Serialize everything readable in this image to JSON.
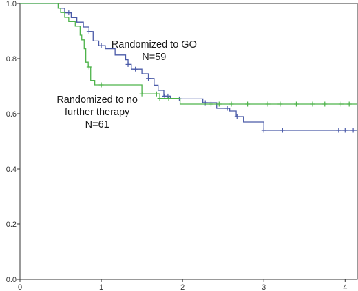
{
  "chart_data": {
    "type": "line",
    "title": "",
    "xlabel": "",
    "ylabel": "",
    "xlim": [
      0,
      4.15
    ],
    "ylim": [
      0,
      1.0
    ],
    "x_ticks": [
      0,
      1,
      2,
      3,
      4
    ],
    "y_ticks": [
      0.0,
      0.2,
      0.4,
      0.6,
      0.8,
      1.0
    ],
    "x_tick_labels": [
      "0",
      "1",
      "2",
      "3",
      "4"
    ],
    "y_tick_labels": [
      "0.0",
      "0.2",
      "0.4",
      "0.6",
      "0.8",
      "1.0"
    ],
    "grid": false,
    "legend": "none",
    "series": [
      {
        "color": "#4a5aa8",
        "step_points": [
          [
            0,
            1.0
          ],
          [
            0.47,
            1.0
          ],
          [
            0.47,
            0.983
          ],
          [
            0.55,
            0.983
          ],
          [
            0.55,
            0.966
          ],
          [
            0.63,
            0.966
          ],
          [
            0.63,
            0.949
          ],
          [
            0.7,
            0.949
          ],
          [
            0.7,
            0.932
          ],
          [
            0.78,
            0.932
          ],
          [
            0.78,
            0.915
          ],
          [
            0.85,
            0.915
          ],
          [
            0.85,
            0.898
          ],
          [
            0.9,
            0.898
          ],
          [
            0.9,
            0.864
          ],
          [
            0.97,
            0.864
          ],
          [
            0.97,
            0.847
          ],
          [
            1.05,
            0.847
          ],
          [
            1.05,
            0.836
          ],
          [
            1.17,
            0.836
          ],
          [
            1.17,
            0.813
          ],
          [
            1.3,
            0.813
          ],
          [
            1.3,
            0.796
          ],
          [
            1.33,
            0.796
          ],
          [
            1.33,
            0.779
          ],
          [
            1.37,
            0.779
          ],
          [
            1.37,
            0.762
          ],
          [
            1.5,
            0.762
          ],
          [
            1.5,
            0.745
          ],
          [
            1.58,
            0.745
          ],
          [
            1.58,
            0.728
          ],
          [
            1.65,
            0.728
          ],
          [
            1.65,
            0.704
          ],
          [
            1.7,
            0.704
          ],
          [
            1.7,
            0.685
          ],
          [
            1.77,
            0.685
          ],
          [
            1.77,
            0.664
          ],
          [
            1.85,
            0.664
          ],
          [
            1.85,
            0.654
          ],
          [
            2.25,
            0.654
          ],
          [
            2.25,
            0.64
          ],
          [
            2.42,
            0.64
          ],
          [
            2.42,
            0.62
          ],
          [
            2.58,
            0.62
          ],
          [
            2.58,
            0.61
          ],
          [
            2.66,
            0.61
          ],
          [
            2.66,
            0.59
          ],
          [
            2.75,
            0.59
          ],
          [
            2.75,
            0.57
          ],
          [
            3.0,
            0.57
          ],
          [
            3.0,
            0.54
          ],
          [
            4.15,
            0.54
          ]
        ],
        "censor_x": [
          0.6,
          0.85,
          1.0,
          1.33,
          1.42,
          1.58,
          1.78,
          1.82,
          1.96,
          2.28,
          2.55,
          2.67,
          3.0,
          3.23,
          3.92,
          4.0,
          4.1
        ]
      },
      {
        "color": "#4db34a",
        "step_points": [
          [
            0,
            1.0
          ],
          [
            0.47,
            1.0
          ],
          [
            0.47,
            0.983
          ],
          [
            0.5,
            0.983
          ],
          [
            0.5,
            0.967
          ],
          [
            0.55,
            0.967
          ],
          [
            0.55,
            0.95
          ],
          [
            0.6,
            0.95
          ],
          [
            0.6,
            0.934
          ],
          [
            0.68,
            0.934
          ],
          [
            0.68,
            0.918
          ],
          [
            0.74,
            0.918
          ],
          [
            0.74,
            0.885
          ],
          [
            0.76,
            0.885
          ],
          [
            0.76,
            0.868
          ],
          [
            0.79,
            0.868
          ],
          [
            0.79,
            0.836
          ],
          [
            0.81,
            0.836
          ],
          [
            0.81,
            0.787
          ],
          [
            0.84,
            0.787
          ],
          [
            0.84,
            0.77
          ],
          [
            0.87,
            0.77
          ],
          [
            0.87,
            0.721
          ],
          [
            0.92,
            0.721
          ],
          [
            0.92,
            0.705
          ],
          [
            1.5,
            0.705
          ],
          [
            1.5,
            0.672
          ],
          [
            1.72,
            0.672
          ],
          [
            1.72,
            0.656
          ],
          [
            1.97,
            0.656
          ],
          [
            1.97,
            0.635
          ],
          [
            4.15,
            0.635
          ]
        ],
        "censor_x": [
          0.85,
          1.0,
          1.5,
          1.68,
          1.72,
          1.83,
          2.35,
          2.45,
          2.6,
          2.8,
          3.05,
          3.2,
          3.4,
          3.6,
          3.75,
          3.95,
          4.05
        ]
      }
    ],
    "annotations": [
      {
        "lines": [
          "Randomized to GO",
          "N=59"
        ],
        "x": 1.65,
        "y": 0.84
      },
      {
        "lines": [
          "Randomized to no",
          "further therapy",
          "N=61"
        ],
        "x": 0.95,
        "y": 0.64
      }
    ]
  }
}
